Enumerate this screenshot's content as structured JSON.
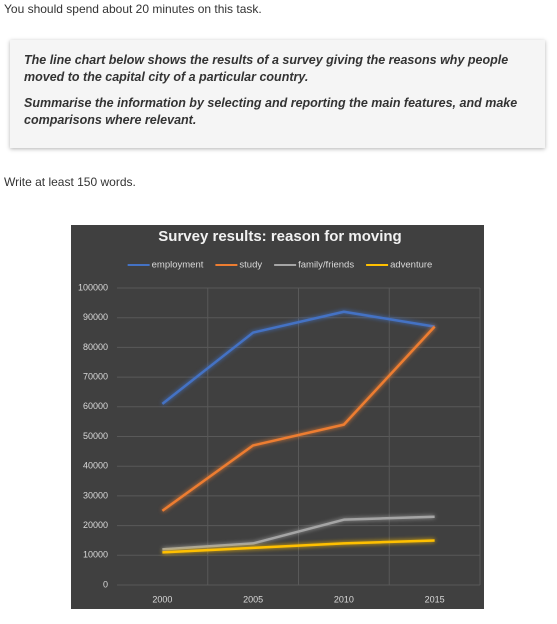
{
  "header": {
    "instruction": "You should spend about 20 minutes on this task."
  },
  "task": {
    "paragraphs": [
      "The line chart below shows the results of a survey giving the reasons why people moved to the capital city of a particular country.",
      "Summarise the information by selecting and reporting the main features, and make comparisons where relevant."
    ]
  },
  "footer": {
    "instruction": "Write at least 150 words."
  },
  "chart_data": {
    "type": "line",
    "title": "Survey results: reason for moving",
    "categories": [
      "2000",
      "2005",
      "2010",
      "2015"
    ],
    "series": [
      {
        "name": "employment",
        "color": "#4472c4",
        "values": [
          61000,
          85000,
          92000,
          87000
        ]
      },
      {
        "name": "study",
        "color": "#ed7d31",
        "values": [
          25000,
          47000,
          54000,
          87000
        ]
      },
      {
        "name": "family/friends",
        "color": "#a5a5a5",
        "values": [
          12000,
          14000,
          22000,
          23000
        ]
      },
      {
        "name": "adventure",
        "color": "#ffc000",
        "values": [
          11000,
          12500,
          14000,
          15000
        ]
      }
    ],
    "ylim": [
      0,
      100000
    ],
    "yticks": [
      0,
      10000,
      20000,
      30000,
      40000,
      50000,
      60000,
      70000,
      80000,
      90000,
      100000
    ],
    "grid": true,
    "legend": "top"
  }
}
